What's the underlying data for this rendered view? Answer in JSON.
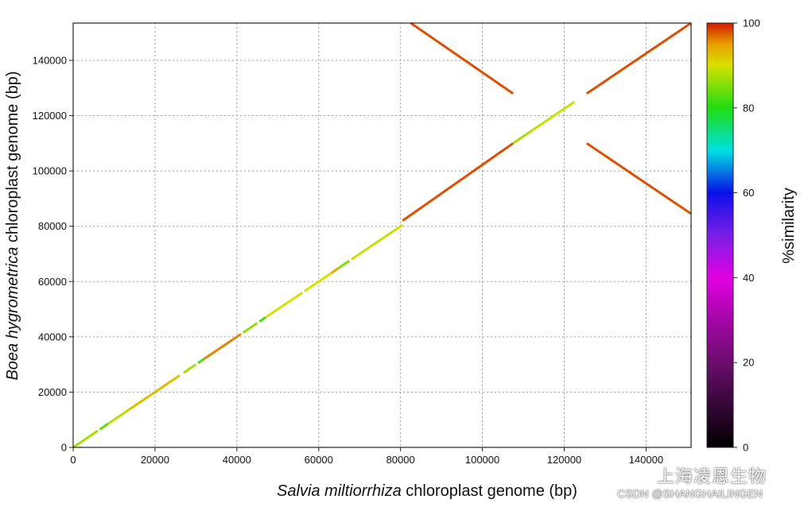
{
  "chart_data": {
    "type": "dot-plot",
    "xlabel": {
      "italic": "Salvia miltiorrhiza",
      "rest": " chloroplast genome (bp)"
    },
    "ylabel": {
      "italic": "Boea hygrometrica",
      "rest": " chloroplast genome (bp)"
    },
    "xlim": [
      0,
      151000
    ],
    "ylim": [
      0,
      153500
    ],
    "x_ticks": [
      0,
      20000,
      40000,
      60000,
      80000,
      100000,
      120000,
      140000
    ],
    "y_ticks": [
      0,
      20000,
      40000,
      60000,
      80000,
      100000,
      120000,
      140000
    ],
    "x_tick_labels": [
      "0",
      "20000",
      "40000",
      "60000",
      "80000",
      "100000",
      "120000",
      "140000"
    ],
    "y_tick_labels": [
      "0",
      "20000",
      "40000",
      "60000",
      "80000",
      "100000",
      "120000",
      "140000"
    ],
    "grid": true,
    "colorbar": {
      "label": "%similarity",
      "range": [
        0,
        100
      ],
      "ticks": [
        0,
        20,
        40,
        60,
        80,
        100
      ],
      "tick_labels": [
        "0",
        "20",
        "40",
        "60",
        "80",
        "100"
      ],
      "stops": [
        {
          "value": 0,
          "color": "#000000"
        },
        {
          "value": 20,
          "color": "#6a0d6e"
        },
        {
          "value": 40,
          "color": "#e000e0"
        },
        {
          "value": 50,
          "color": "#7a1fe8"
        },
        {
          "value": 60,
          "color": "#0a10e8"
        },
        {
          "value": 70,
          "color": "#00e0e0"
        },
        {
          "value": 80,
          "color": "#20dd10"
        },
        {
          "value": 90,
          "color": "#d8e000"
        },
        {
          "value": 95,
          "color": "#e8a000"
        },
        {
          "value": 100,
          "color": "#d41a00"
        }
      ]
    },
    "segments": [
      {
        "x": [
          0,
          6000
        ],
        "y": [
          0,
          6000
        ],
        "similarity": 87
      },
      {
        "x": [
          6500,
          8500
        ],
        "y": [
          6500,
          8500
        ],
        "similarity": 83
      },
      {
        "x": [
          8500,
          14000
        ],
        "y": [
          8500,
          14000
        ],
        "similarity": 88
      },
      {
        "x": [
          14000,
          26000
        ],
        "y": [
          14000,
          26000
        ],
        "similarity": 93
      },
      {
        "x": [
          27000,
          30000
        ],
        "y": [
          27000,
          30000
        ],
        "similarity": 87
      },
      {
        "x": [
          30500,
          32000
        ],
        "y": [
          30500,
          32000
        ],
        "similarity": 82
      },
      {
        "x": [
          32000,
          41000
        ],
        "y": [
          32000,
          41000
        ],
        "similarity": 96
      },
      {
        "x": [
          41500,
          45000
        ],
        "y": [
          41500,
          45000
        ],
        "similarity": 86
      },
      {
        "x": [
          45500,
          47000
        ],
        "y": [
          45500,
          47000
        ],
        "similarity": 82
      },
      {
        "x": [
          47000,
          56000
        ],
        "y": [
          47000,
          56000
        ],
        "similarity": 90
      },
      {
        "x": [
          56500,
          63000
        ],
        "y": [
          56500,
          63000
        ],
        "similarity": 90
      },
      {
        "x": [
          63000,
          65000
        ],
        "y": [
          63000,
          65000
        ],
        "similarity": 94
      },
      {
        "x": [
          65000,
          67500
        ],
        "y": [
          65000,
          67500
        ],
        "similarity": 85
      },
      {
        "x": [
          68000,
          80500
        ],
        "y": [
          68000,
          80500
        ],
        "similarity": 89
      },
      {
        "x": [
          80500,
          107500
        ],
        "y": [
          82000,
          110000
        ],
        "similarity": 98
      },
      {
        "x": [
          107500,
          112000
        ],
        "y": [
          110000,
          114500
        ],
        "similarity": 87
      },
      {
        "x": [
          112000,
          122500
        ],
        "y": [
          114500,
          125000
        ],
        "similarity": 89
      },
      {
        "x": [
          125500,
          151000
        ],
        "y": [
          128000,
          153500
        ],
        "similarity": 98
      },
      {
        "x": [
          82500,
          107500
        ],
        "y": [
          153500,
          128000
        ],
        "similarity": 98
      },
      {
        "x": [
          125500,
          151000
        ],
        "y": [
          110000,
          84500
        ],
        "similarity": 98
      }
    ]
  },
  "watermark": {
    "brand": "上海凌恩生物",
    "source": "CSDN @SHANGHAILINGEN"
  }
}
